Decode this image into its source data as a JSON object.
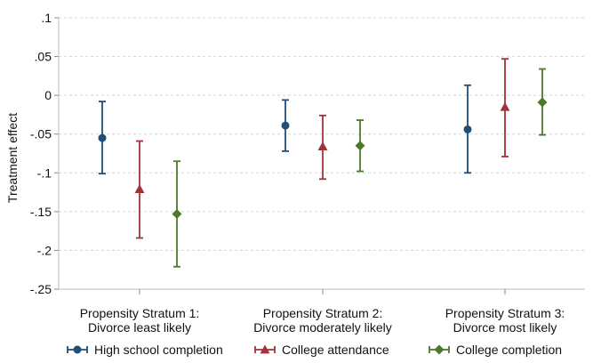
{
  "chart_data": {
    "type": "errorbar",
    "title": "",
    "xlabel": "",
    "ylabel": "Treatment effect",
    "ylim": [
      -0.25,
      0.1
    ],
    "yticks": [
      0.1,
      0.05,
      0,
      -0.05,
      -0.1,
      -0.15,
      -0.2,
      -0.25
    ],
    "ytick_labels": [
      ".1",
      ".05",
      "0",
      "-.05",
      "-.1",
      "-.15",
      "-.2",
      "-.25"
    ],
    "grid": true,
    "legend_position": "bottom",
    "categories": [
      {
        "line1": "Propensity Stratum 1:",
        "line2": "Divorce least likely"
      },
      {
        "line1": "Propensity Stratum 2:",
        "line2": "Divorce moderately likely"
      },
      {
        "line1": "Propensity Stratum 3:",
        "line2": "Divorce most likely"
      }
    ],
    "series": [
      {
        "name": "High school completion",
        "color": "#1f4e79",
        "marker": "circle",
        "values": [
          -0.055,
          -0.039,
          -0.044
        ],
        "lower": [
          -0.101,
          -0.072,
          -0.1
        ],
        "upper": [
          -0.008,
          -0.006,
          0.013
        ]
      },
      {
        "name": "College attendance",
        "color": "#a1333a",
        "marker": "triangle",
        "values": [
          -0.121,
          -0.066,
          -0.015
        ],
        "lower": [
          -0.184,
          -0.108,
          -0.079
        ],
        "upper": [
          -0.059,
          -0.026,
          0.047
        ]
      },
      {
        "name": "College completion",
        "color": "#4a7a2a",
        "marker": "diamond",
        "values": [
          -0.153,
          -0.065,
          -0.009
        ],
        "lower": [
          -0.221,
          -0.098,
          -0.051
        ],
        "upper": [
          -0.085,
          -0.032,
          0.034
        ]
      }
    ]
  }
}
